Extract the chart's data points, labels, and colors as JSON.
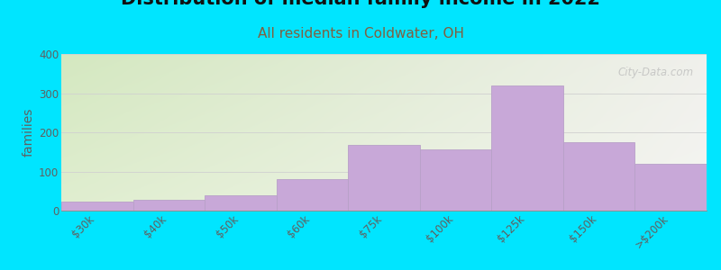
{
  "subtitle": "All residents in Coldwater, OH",
  "ylabel": "families",
  "categories": [
    "$30k",
    "$40k",
    "$50k",
    "$60k",
    "$75k",
    "$100k",
    "$125k",
    "$150k",
    ">$200k"
  ],
  "values": [
    22,
    27,
    38,
    80,
    168,
    157,
    320,
    175,
    120
  ],
  "bar_color": "#c8a8d8",
  "bar_edge_color": "#b8a0c8",
  "background_color": "#00e5ff",
  "bg_left_top": "#d4e8c0",
  "bg_right_bottom": "#f5f5f0",
  "ylim": [
    0,
    400
  ],
  "yticks": [
    0,
    100,
    200,
    300,
    400
  ],
  "title_fontsize": 15,
  "subtitle_fontsize": 11,
  "ylabel_fontsize": 10,
  "tick_fontsize": 8.5,
  "subtitle_color": "#806040",
  "tick_color": "#606060",
  "watermark": "City-Data.com"
}
